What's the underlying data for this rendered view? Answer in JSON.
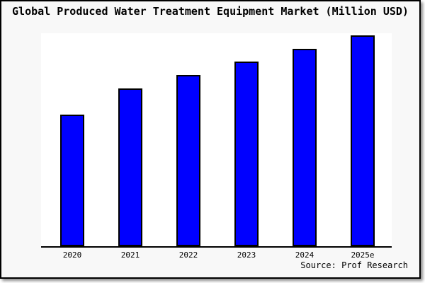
{
  "title": "Global Produced Water Treatment Equipment Market (Million USD)",
  "source": "Source: Prof Research",
  "colors": {
    "bar_fill": "#0000ff",
    "bar_edge": "#000000",
    "plot_background": "#ffffff",
    "figure_background": "#f8f8f8",
    "border": "#000000",
    "text": "#000000"
  },
  "chart_data": {
    "type": "bar",
    "title": "Global Produced Water Treatment Equipment Market (Million USD)",
    "categories": [
      "2020",
      "2021",
      "2022",
      "2023",
      "2024",
      "2025e"
    ],
    "values": [
      62.4,
      74.8,
      81.2,
      87.6,
      93.6,
      100.0
    ],
    "values_unit": "relative height, % of 2025e bar (no y-axis scale labels shown)",
    "xlabel": "",
    "ylabel": "",
    "ylim": [
      0,
      105
    ],
    "grid": false,
    "legend": false,
    "annotation": "Source: Prof Research"
  }
}
